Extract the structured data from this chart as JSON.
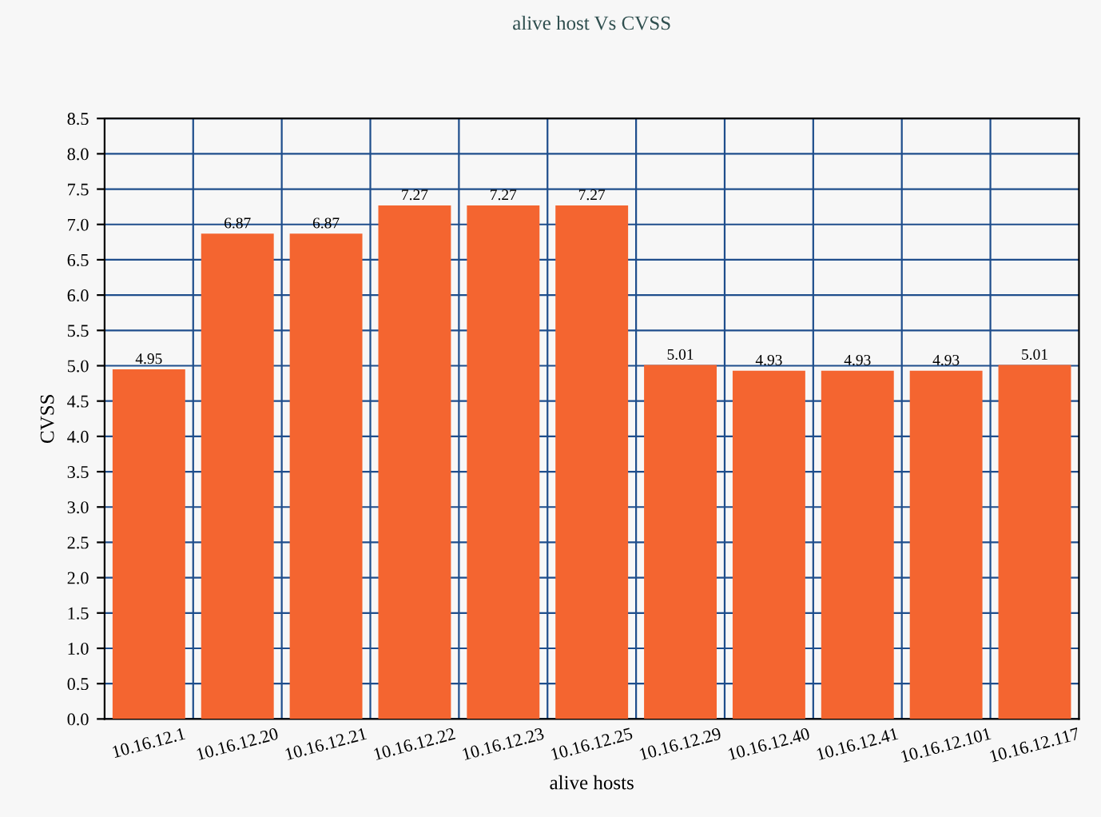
{
  "chart_data": {
    "type": "bar",
    "title": "alive host Vs CVSS",
    "xlabel": "alive hosts",
    "ylabel": "CVSS",
    "categories": [
      "10.16.12.1",
      "10.16.12.20",
      "10.16.12.21",
      "10.16.12.22",
      "10.16.12.23",
      "10.16.12.25",
      "10.16.12.29",
      "10.16.12.40",
      "10.16.12.41",
      "10.16.12.101",
      "10.16.12.117"
    ],
    "values": [
      4.95,
      6.87,
      6.87,
      7.27,
      7.27,
      7.27,
      5.01,
      4.93,
      4.93,
      4.93,
      5.01
    ],
    "color": "#f46530",
    "data_labels": true,
    "grid": true,
    "ylim": [
      0,
      8.5
    ],
    "yticks": [
      {
        "value": 0,
        "label": "0.0"
      },
      {
        "value": 0.5,
        "label": "0.5"
      },
      {
        "value": 1,
        "label": "1.0"
      },
      {
        "value": 1.5,
        "label": "1.5"
      },
      {
        "value": 2,
        "label": "2.0"
      },
      {
        "value": 2.5,
        "label": "2.5"
      },
      {
        "value": 3,
        "label": "3.0"
      },
      {
        "value": 3.5,
        "label": "3.5"
      },
      {
        "value": 4,
        "label": "4.0"
      },
      {
        "value": 4.5,
        "label": "4.5"
      },
      {
        "value": 5,
        "label": "5.0"
      },
      {
        "value": 5.5,
        "label": "5.5"
      },
      {
        "value": 6,
        "label": "6.0"
      },
      {
        "value": 6.5,
        "label": "6.5"
      },
      {
        "value": 7,
        "label": "7.0"
      },
      {
        "value": 7.5,
        "label": "7.5"
      },
      {
        "value": 8,
        "label": "8.0"
      },
      {
        "value": 8.5,
        "label": "8.5"
      }
    ]
  }
}
